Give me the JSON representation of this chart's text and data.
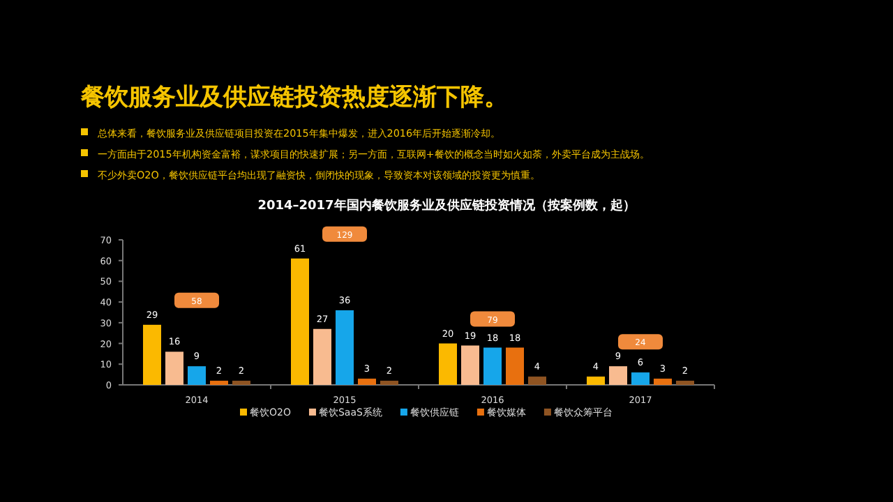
{
  "chart_data": {
    "type": "bar",
    "title": "餐饮服务业及供应链投资热度逐渐下降。",
    "subtitle": "2014–2017年国内餐饮服务业及供应链投资情况（按案例数，起）",
    "annotations": [
      "总体来看，餐饮服务业及供应链项目投资在2015年集中爆发，进入2016年后开始逐渐冷却。",
      "一方面由于2015年机构资金富裕，谋求项目的快速扩展；另一方面，互联网+餐饮的概念当时如火如荼，外卖平台成为主战场。",
      "不少外卖O2O，餐饮供应链平台均出现了融资快，倒闭快的现象，导致资本对该领域的投资更为慎重。"
    ],
    "categories": [
      "2014",
      "2015",
      "2016",
      "2017"
    ],
    "series": [
      {
        "name": "餐饮O2O",
        "color": "#fbb900",
        "values": [
          29,
          61,
          20,
          4
        ]
      },
      {
        "name": "餐饮SaaS系统",
        "color": "#f8bb90",
        "values": [
          16,
          27,
          19,
          9
        ]
      },
      {
        "name": "餐饮供应链",
        "color": "#16a6ea",
        "values": [
          9,
          36,
          18,
          6
        ]
      },
      {
        "name": "餐饮媒体",
        "color": "#e8700f",
        "values": [
          2,
          3,
          18,
          3
        ]
      },
      {
        "name": "餐饮众筹平台",
        "color": "#8f5422",
        "values": [
          2,
          2,
          4,
          2
        ]
      }
    ],
    "ylim": [
      0,
      70
    ],
    "yticks": [
      0,
      10,
      20,
      30,
      40,
      50,
      60,
      70
    ],
    "data_labels": true,
    "totals": [
      "58",
      "129",
      "79",
      "24"
    ],
    "legend": "bottom",
    "grid": false
  }
}
